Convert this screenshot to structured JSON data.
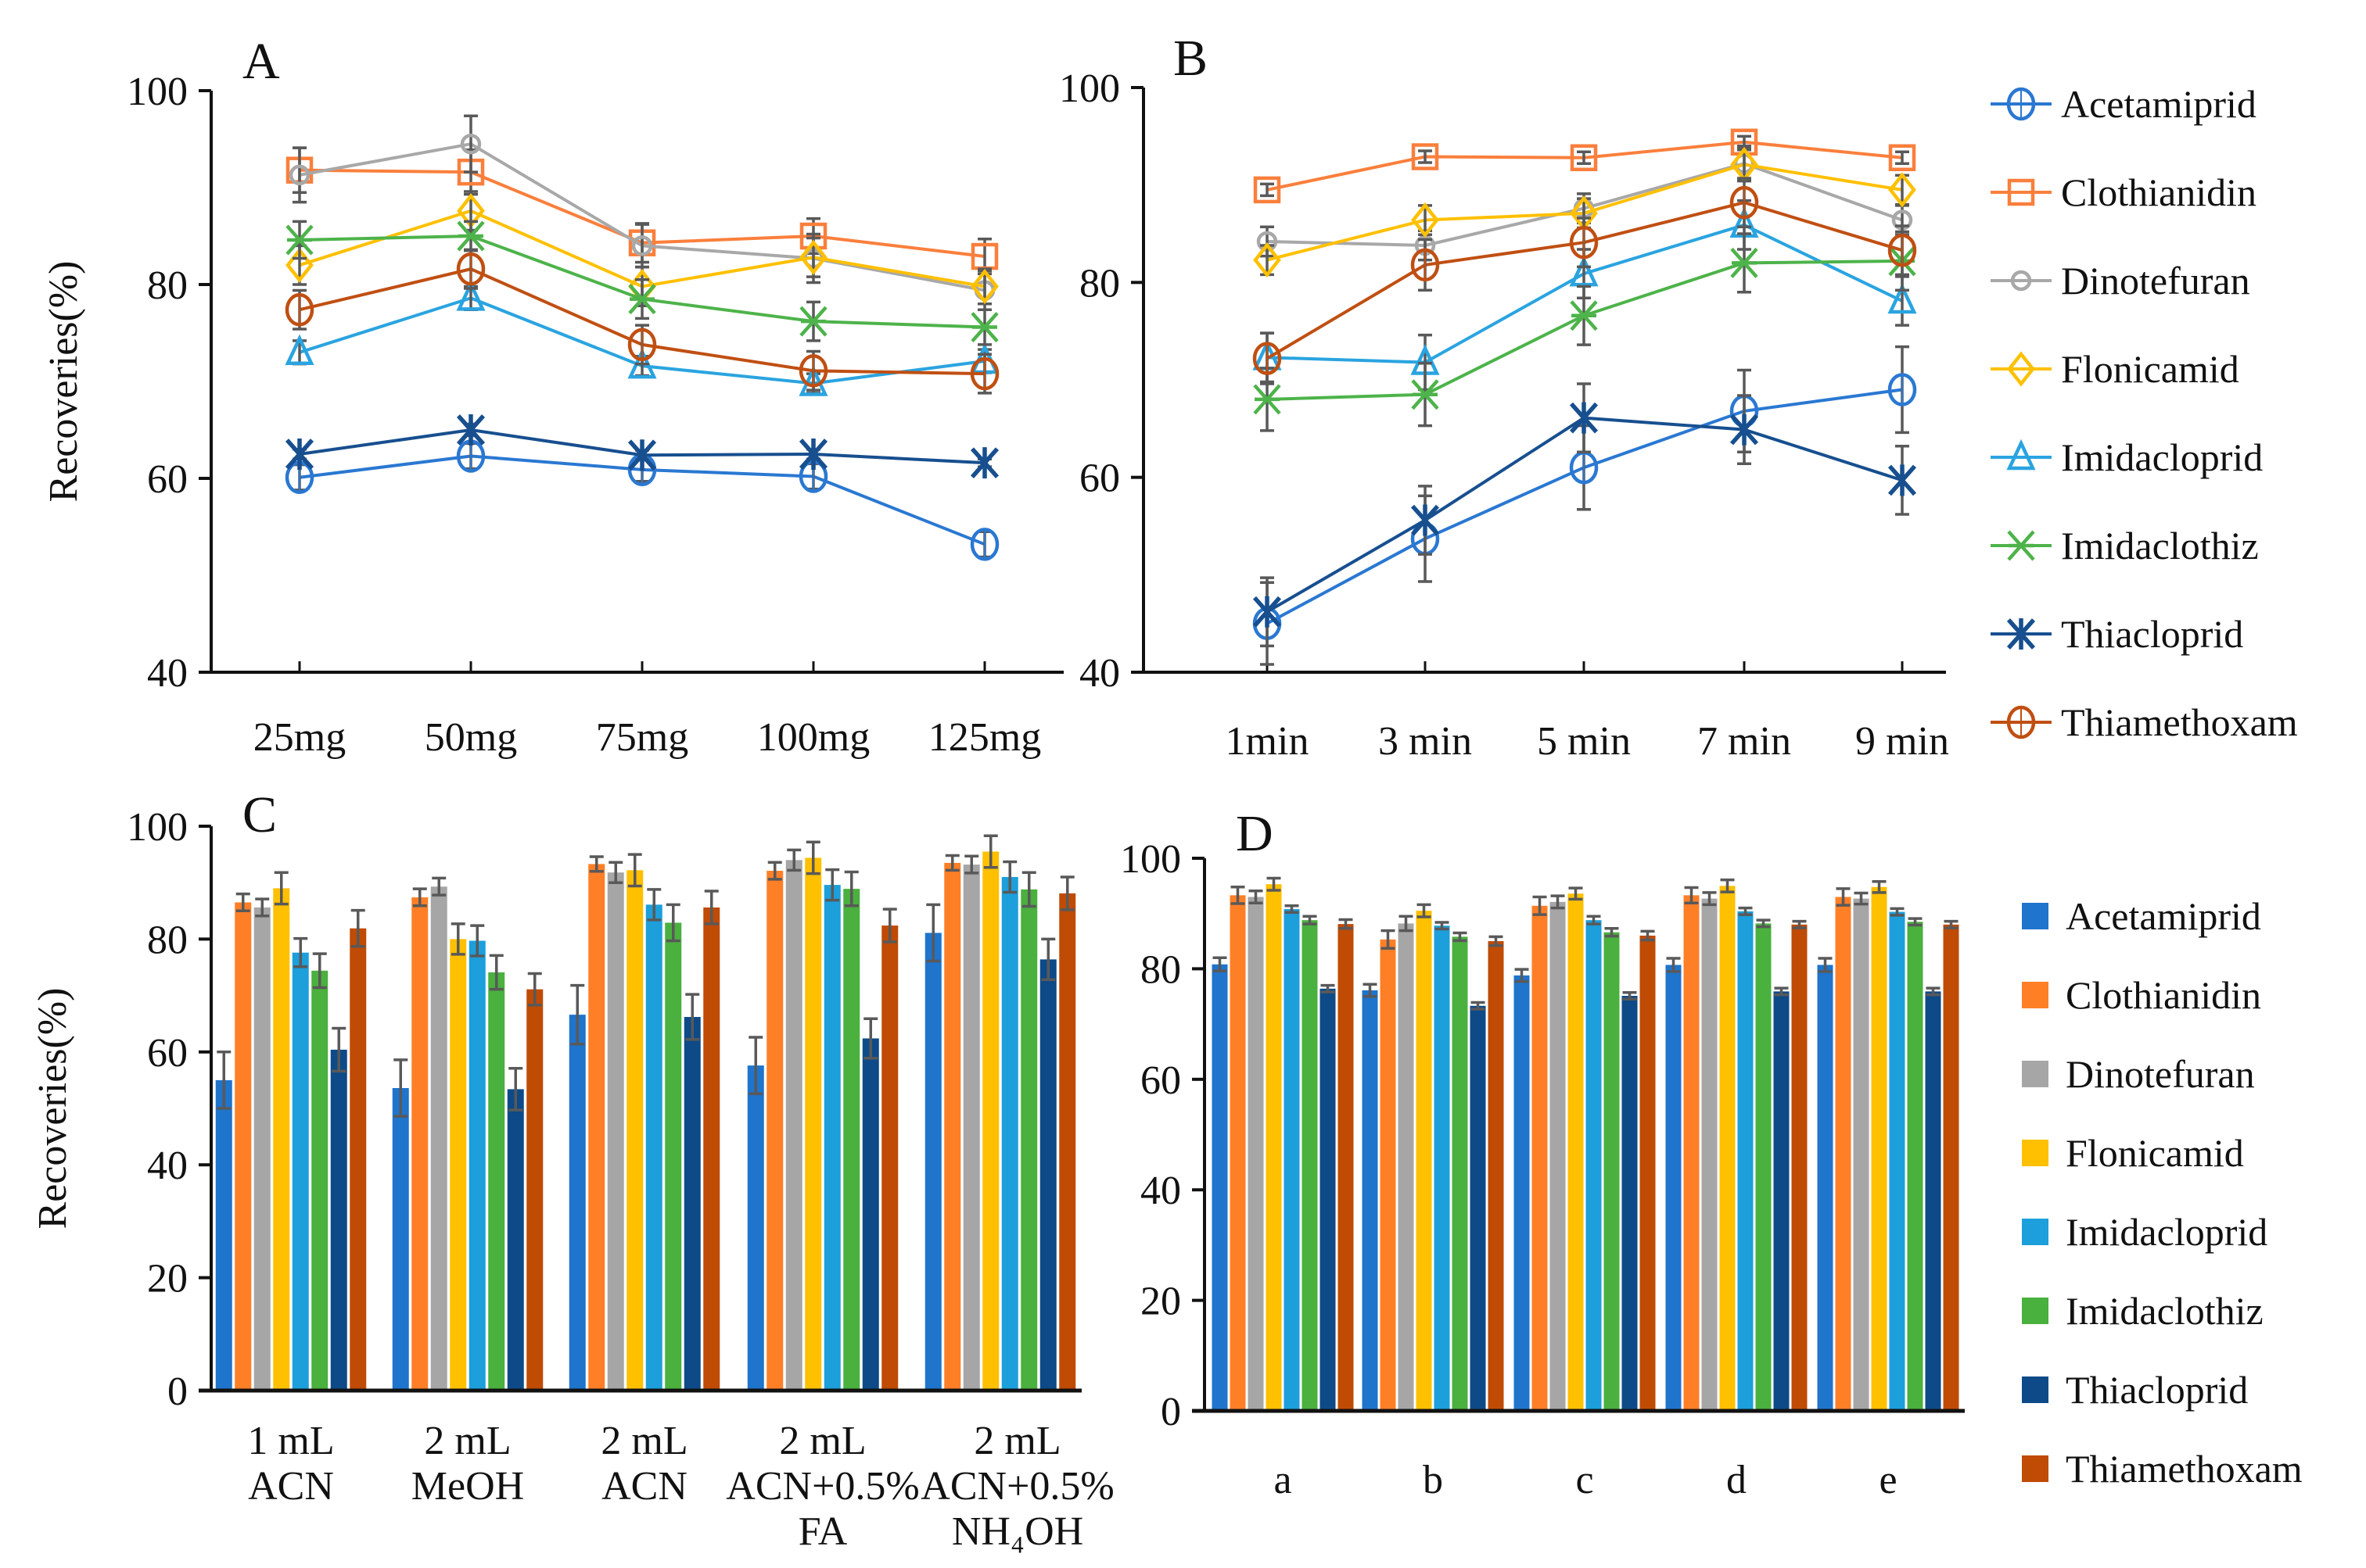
{
  "figure": {
    "compounds": [
      "Acetamiprid",
      "Clothianidin",
      "Dinotefuran",
      "Flonicamid",
      "Imidacloprid",
      "Imidaclothiz",
      "Thiacloprid",
      "Thiamethoxam"
    ],
    "line_colors": [
      "#2A78D2",
      "#FA7F3C",
      "#A8A8A8",
      "#FFC000",
      "#2AA4E0",
      "#4DB34A",
      "#174F8F",
      "#C04F12"
    ],
    "bar_colors": [
      "#1F74CC",
      "#FF7F27",
      "#A6A6A6",
      "#FFC000",
      "#1C9FDB",
      "#4AB03E",
      "#0D4A87",
      "#BF4B05"
    ],
    "markers": [
      "circle",
      "square",
      "small-circle",
      "diamond",
      "triangle",
      "x",
      "star",
      "circle"
    ],
    "error_bar_color": "#595959"
  },
  "chart_data": [
    {
      "panel": "A",
      "type": "line",
      "title": "",
      "xlabel": "",
      "ylabel": "Recoveries(%)",
      "categories": [
        "25mg",
        "50mg",
        "75mg",
        "100mg",
        "125mg"
      ],
      "ylim": [
        40,
        100
      ],
      "yticks": [
        40,
        60,
        80,
        100
      ],
      "grid": false,
      "legend": "none",
      "series": [
        {
          "name": "Acetamiprid",
          "values": [
            60.1,
            62.3,
            60.9,
            60.2,
            53.2
          ],
          "errors": [
            1.3,
            1.3,
            1.2,
            1.3,
            1.3
          ]
        },
        {
          "name": "Clothianidin",
          "values": [
            91.8,
            91.6,
            84.3,
            85.0,
            82.9
          ],
          "errors": [
            2.3,
            2.3,
            2.0,
            1.8,
            1.8
          ]
        },
        {
          "name": "Dinotefuran",
          "values": [
            91.3,
            94.5,
            84.0,
            82.7,
            79.4
          ],
          "errors": [
            2.8,
            2.9,
            2.2,
            2.5,
            2.0
          ]
        },
        {
          "name": "Flonicamid",
          "values": [
            82.0,
            87.6,
            79.8,
            82.8,
            79.8
          ],
          "errors": [
            2.0,
            2.0,
            2.0,
            2.0,
            1.8
          ]
        },
        {
          "name": "Imidacloprid",
          "values": [
            73.0,
            78.6,
            71.6,
            69.8,
            72.1
          ],
          "errors": [
            1.2,
            1.2,
            1.0,
            1.0,
            1.2
          ]
        },
        {
          "name": "Imidaclothiz",
          "values": [
            84.6,
            85.0,
            78.5,
            76.2,
            75.6
          ],
          "errors": [
            1.9,
            1.5,
            2.0,
            2.0,
            1.8
          ]
        },
        {
          "name": "Thiacloprid",
          "values": [
            62.5,
            65.0,
            62.4,
            62.5,
            61.6
          ],
          "errors": [
            0.5,
            0.6,
            0.5,
            0.5,
            0.4
          ]
        },
        {
          "name": "Thiamethoxam",
          "values": [
            77.4,
            81.6,
            73.8,
            71.1,
            70.8
          ],
          "errors": [
            2.0,
            2.0,
            2.0,
            2.0,
            2.0
          ]
        }
      ]
    },
    {
      "panel": "B",
      "type": "line",
      "title": "",
      "xlabel": "",
      "ylabel": "",
      "categories": [
        "1min",
        "3 min",
        "5 min",
        "7 min",
        "9 min"
      ],
      "ylim": [
        40,
        100
      ],
      "yticks": [
        40,
        60,
        80,
        100
      ],
      "grid": false,
      "legend": "right",
      "series": [
        {
          "name": "Acetamiprid",
          "values": [
            45.0,
            53.7,
            61.0,
            66.8,
            69.0
          ],
          "errors": [
            4.2,
            4.4,
            4.3,
            4.2,
            4.4
          ]
        },
        {
          "name": "Clothianidin",
          "values": [
            89.5,
            92.9,
            92.8,
            94.4,
            92.8
          ],
          "errors": [
            0.6,
            0.6,
            0.6,
            0.6,
            0.6
          ]
        },
        {
          "name": "Dinotefuran",
          "values": [
            84.2,
            83.8,
            87.6,
            92.2,
            86.4
          ],
          "errors": [
            1.5,
            1.5,
            1.5,
            1.8,
            1.5
          ]
        },
        {
          "name": "Flonicamid",
          "values": [
            82.3,
            86.4,
            87.1,
            92.1,
            89.5
          ],
          "errors": [
            1.5,
            1.5,
            1.5,
            1.5,
            1.5
          ]
        },
        {
          "name": "Imidacloprid",
          "values": [
            72.3,
            71.8,
            80.9,
            85.9,
            78.1
          ],
          "errors": [
            2.5,
            2.8,
            2.5,
            2.5,
            2.5
          ]
        },
        {
          "name": "Imidaclothiz",
          "values": [
            68.0,
            68.5,
            76.6,
            82.0,
            82.2
          ],
          "errors": [
            3.2,
            3.2,
            3.0,
            3.0,
            3.0
          ]
        },
        {
          "name": "Thiacloprid",
          "values": [
            46.2,
            55.6,
            66.1,
            64.9,
            59.7
          ],
          "errors": [
            3.5,
            3.5,
            3.5,
            3.5,
            3.5
          ]
        },
        {
          "name": "Thiamethoxam",
          "values": [
            72.2,
            81.8,
            84.1,
            88.2,
            83.3
          ],
          "errors": [
            2.6,
            2.6,
            2.5,
            2.5,
            2.5
          ]
        }
      ]
    },
    {
      "panel": "C",
      "type": "bar",
      "title": "",
      "xlabel": "",
      "ylabel": "Recoveries(%)",
      "categories": [
        [
          "1 mL",
          "ACN"
        ],
        [
          "2 mL",
          "MeOH"
        ],
        [
          "2 mL",
          "ACN"
        ],
        [
          "2 mL",
          "ACN+0.5%",
          "FA"
        ],
        [
          "2 mL",
          "ACN+0.5%",
          "NH₄OH"
        ]
      ],
      "ylim": [
        0,
        100
      ],
      "yticks": [
        0,
        20,
        40,
        60,
        80,
        100
      ],
      "grid": false,
      "legend": "none",
      "series": [
        {
          "name": "Acetamiprid",
          "values": [
            55.0,
            53.6,
            66.6,
            57.6,
            81.1
          ],
          "errors": [
            5.0,
            5.0,
            5.2,
            5.0,
            5.0
          ]
        },
        {
          "name": "Clothianidin",
          "values": [
            86.5,
            87.4,
            93.3,
            92.1,
            93.5
          ],
          "errors": [
            1.5,
            1.5,
            1.3,
            1.5,
            1.3
          ]
        },
        {
          "name": "Dinotefuran",
          "values": [
            85.6,
            89.3,
            91.8,
            94.0,
            93.2
          ],
          "errors": [
            1.5,
            1.5,
            1.8,
            1.8,
            1.5
          ]
        },
        {
          "name": "Flonicamid",
          "values": [
            89.0,
            80.0,
            92.2,
            94.4,
            95.5
          ],
          "errors": [
            2.8,
            2.7,
            2.8,
            2.8,
            2.8
          ]
        },
        {
          "name": "Imidacloprid",
          "values": [
            77.6,
            79.7,
            86.1,
            89.6,
            91.0
          ],
          "errors": [
            2.5,
            2.7,
            2.7,
            2.7,
            2.7
          ]
        },
        {
          "name": "Imidaclothiz",
          "values": [
            74.4,
            74.1,
            82.9,
            88.9,
            88.8
          ],
          "errors": [
            3.0,
            3.0,
            3.2,
            3.0,
            3.0
          ]
        },
        {
          "name": "Thiacloprid",
          "values": [
            60.4,
            53.4,
            66.2,
            62.4,
            76.4
          ],
          "errors": [
            3.8,
            3.7,
            4.0,
            3.5,
            3.6
          ]
        },
        {
          "name": "Thiamethoxam",
          "values": [
            81.9,
            71.1,
            85.6,
            82.4,
            88.1
          ],
          "errors": [
            3.2,
            2.8,
            2.9,
            2.9,
            2.9
          ]
        }
      ]
    },
    {
      "panel": "D",
      "type": "bar",
      "title": "",
      "xlabel": "",
      "ylabel": "",
      "categories": [
        [
          "a"
        ],
        [
          "b"
        ],
        [
          "c"
        ],
        [
          "d"
        ],
        [
          "e"
        ]
      ],
      "ylim": [
        0,
        100
      ],
      "yticks": [
        0,
        20,
        40,
        60,
        80,
        100
      ],
      "grid": false,
      "legend": "right",
      "series": [
        {
          "name": "Acetamiprid",
          "values": [
            80.8,
            76.1,
            78.8,
            80.7,
            80.7
          ],
          "errors": [
            1.2,
            1.1,
            1.1,
            1.2,
            1.2
          ]
        },
        {
          "name": "Clothianidin",
          "values": [
            93.3,
            85.3,
            91.4,
            93.3,
            93.0
          ],
          "errors": [
            1.5,
            1.6,
            1.6,
            1.4,
            1.5
          ]
        },
        {
          "name": "Dinotefuran",
          "values": [
            93.0,
            88.2,
            92.1,
            92.7,
            92.7
          ],
          "errors": [
            1.1,
            1.3,
            1.1,
            1.1,
            1.0
          ]
        },
        {
          "name": "Flonicamid",
          "values": [
            95.3,
            90.5,
            93.6,
            95.0,
            94.8
          ],
          "errors": [
            1.1,
            1.1,
            1.0,
            1.1,
            1.0
          ]
        },
        {
          "name": "Imidacloprid",
          "values": [
            90.8,
            87.8,
            88.8,
            90.4,
            90.3
          ],
          "errors": [
            0.6,
            0.6,
            0.7,
            0.6,
            0.6
          ]
        },
        {
          "name": "Imidaclothiz",
          "values": [
            88.8,
            85.8,
            86.6,
            88.2,
            88.5
          ],
          "errors": [
            0.7,
            0.7,
            0.7,
            0.6,
            0.6
          ]
        },
        {
          "name": "Thiacloprid",
          "values": [
            76.4,
            73.3,
            75.1,
            75.9,
            75.9
          ],
          "errors": [
            0.6,
            0.6,
            0.6,
            0.6,
            0.6
          ]
        },
        {
          "name": "Thiamethoxam",
          "values": [
            88.1,
            85.0,
            86.0,
            88.0,
            88.0
          ],
          "errors": [
            0.8,
            0.8,
            0.8,
            0.6,
            0.6
          ]
        }
      ]
    }
  ]
}
